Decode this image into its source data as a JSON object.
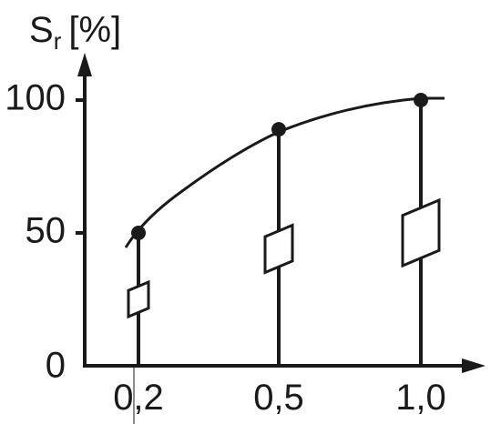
{
  "chart_data": {
    "type": "scatter",
    "title": "",
    "ylabel_main": "S",
    "ylabel_sub": "r",
    "ylabel_unit": "[%]",
    "xlabel": "",
    "x_ticks": [
      "0,2",
      "0,5",
      "1,0"
    ],
    "y_ticks": [
      "0",
      "50",
      "100"
    ],
    "ylim": [
      0,
      100
    ],
    "grid": false,
    "points": [
      {
        "x": "0,2",
        "y": 50
      },
      {
        "x": "0,5",
        "y": 89
      },
      {
        "x": "1,0",
        "y": 100
      }
    ],
    "markers": [
      {
        "x": "0,2",
        "center": 25
      },
      {
        "x": "0,5",
        "center": 44
      },
      {
        "x": "1,0",
        "center": 50
      }
    ]
  },
  "colors": {
    "ink": "#1a1a1a",
    "background": "#ffffff"
  }
}
